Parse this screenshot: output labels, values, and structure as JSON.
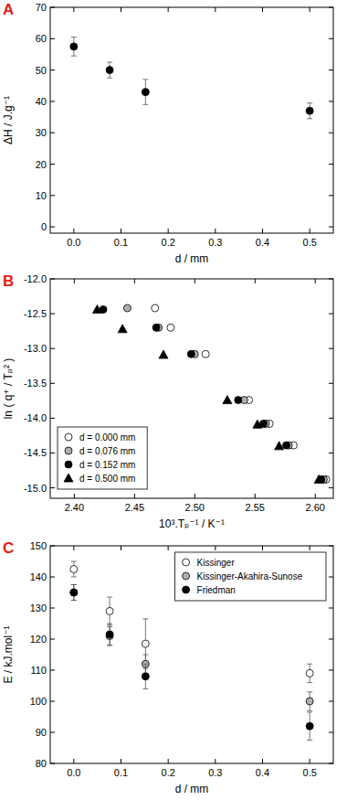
{
  "chart_data": [
    {
      "type": "scatter",
      "title": "A",
      "xlabel": "d / mm",
      "ylabel": "ΔH / J.g⁻¹",
      "xlim": [
        -0.05,
        0.55
      ],
      "xticks": [
        {
          "value": 0,
          "label": "0.0"
        },
        0.1,
        0.2,
        0.3,
        0.4,
        0.5
      ],
      "ylim": [
        -2,
        70
      ],
      "yticks": [
        0,
        10,
        20,
        30,
        40,
        50,
        60,
        70
      ],
      "series": [
        {
          "color": "#000000",
          "marker": "circle",
          "x": [
            0,
            0.076,
            0.152,
            0.5
          ],
          "values": [
            57.5,
            50,
            43,
            37
          ],
          "errors": [
            3,
            2.5,
            4,
            2.5
          ]
        }
      ]
    },
    {
      "type": "scatter",
      "title": "B",
      "xlabel": "10³.Tₚ⁻¹ / K⁻¹",
      "ylabel": "ln ( q⁺ / Tₚ² )",
      "xlim": [
        2.38,
        2.615
      ],
      "xticks": [
        {
          "value": 2.4,
          "label": "2.40"
        },
        2.45,
        {
          "value": 2.5,
          "label": "2.50"
        },
        2.55,
        {
          "value": 2.6,
          "label": "2.60"
        }
      ],
      "ylim": [
        -15.15,
        -12.0
      ],
      "yticks": [
        {
          "value": -12,
          "label": "-12.0"
        },
        -12.5,
        {
          "value": -13,
          "label": "-13.0"
        },
        -13.5,
        {
          "value": -14,
          "label": "-14.0"
        },
        -14.5,
        {
          "value": -15,
          "label": "-15.0"
        }
      ],
      "legend": "lower left",
      "series": [
        {
          "name": "d = 0.000 mm",
          "color": "#ffffff",
          "marker": "circle",
          "x": [
            2.467,
            2.48,
            2.509,
            2.545,
            2.562,
            2.582,
            2.609
          ],
          "values": [
            -12.42,
            -12.7,
            -13.08,
            -13.74,
            -14.08,
            -14.39,
            -14.88
          ]
        },
        {
          "name": "d = 0.076 mm",
          "color": "#b0b0b0",
          "marker": "circle",
          "x": [
            2.444,
            2.47,
            2.5,
            2.541,
            2.559,
            2.578,
            2.607
          ],
          "values": [
            -12.42,
            -12.7,
            -13.08,
            -13.74,
            -14.08,
            -14.39,
            -14.88
          ]
        },
        {
          "name": "d = 0.152 mm",
          "color": "#000000",
          "marker": "circle",
          "x": [
            2.424,
            2.468,
            2.497,
            2.536,
            2.557,
            2.576,
            2.605
          ],
          "values": [
            -12.44,
            -12.7,
            -13.08,
            -13.74,
            -14.08,
            -14.39,
            -14.88
          ]
        },
        {
          "name": "d = 0.500 mm",
          "color": "#000000",
          "marker": "triangle",
          "x": [
            2.419,
            2.44,
            2.474,
            2.527,
            2.552,
            2.57,
            2.603
          ],
          "values": [
            -12.44,
            -12.72,
            -13.09,
            -13.74,
            -14.09,
            -14.4,
            -14.88
          ]
        }
      ]
    },
    {
      "type": "scatter",
      "title": "C",
      "xlabel": "d / mm",
      "ylabel": "E / kJ.mol⁻¹",
      "xlim": [
        -0.05,
        0.55
      ],
      "xticks": [
        {
          "value": 0,
          "label": "0.0"
        },
        0.1,
        0.2,
        0.3,
        0.4,
        0.5
      ],
      "ylim": [
        80,
        150
      ],
      "yticks": [
        80,
        90,
        100,
        110,
        120,
        130,
        140,
        150
      ],
      "legend": "upper right",
      "series": [
        {
          "name": "Kissinger",
          "color": "#ffffff",
          "marker": "circle",
          "x": [
            0,
            0.076,
            0.152,
            0.5
          ],
          "values": [
            142.5,
            129,
            118.5,
            109
          ],
          "errors": [
            2.5,
            4.5,
            8,
            3
          ]
        },
        {
          "name": "Kissinger-Akahira-Sunose",
          "color": "#b0b0b0",
          "marker": "circle",
          "x": [
            0,
            0.076,
            0.152,
            0.5
          ],
          "values": [
            135,
            121,
            112,
            100
          ],
          "errors": [
            2.5,
            3,
            3,
            3
          ]
        },
        {
          "name": "Friedman",
          "color": "#000000",
          "marker": "circle",
          "x": [
            0,
            0.076,
            0.152,
            0.5
          ],
          "values": [
            135,
            121.5,
            108,
            92
          ],
          "errors": [
            2.5,
            3.5,
            4,
            4.5
          ]
        }
      ]
    }
  ]
}
